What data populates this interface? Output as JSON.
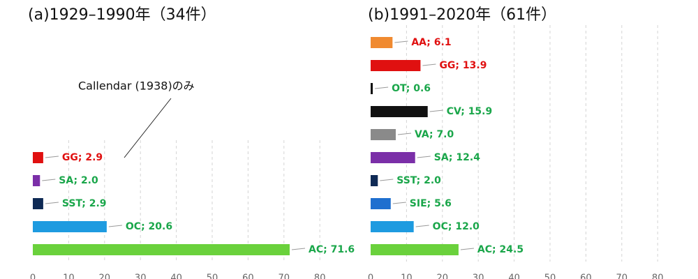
{
  "chart_data": [
    {
      "type": "bar",
      "orientation": "horizontal",
      "title": "(a)1929–1990年（34件）",
      "label_separator": "; ",
      "categories": [
        "GG",
        "SA",
        "SST",
        "OC",
        "AC"
      ],
      "values": [
        2.9,
        2.0,
        2.9,
        20.6,
        71.6
      ],
      "value_labels": [
        "2.9",
        "2.0",
        "2.9",
        "20.6",
        "71.6"
      ],
      "colors": [
        "#e01010",
        "#7b2fa8",
        "#0f2a55",
        "#1e9be0",
        "#6ad13c"
      ],
      "label_colors": [
        "#e01010",
        "#1aa64a",
        "#1aa64a",
        "#1aa64a",
        "#1aa64a"
      ],
      "xlim": [
        0,
        80
      ],
      "xticks": [
        0,
        10,
        20,
        30,
        40,
        50,
        60,
        70,
        80
      ],
      "grid": true,
      "annotation": "Callendar (1938)のみ"
    },
    {
      "type": "bar",
      "orientation": "horizontal",
      "title": "(b)1991–2020年（61件）",
      "label_separator": "; ",
      "categories": [
        "AA",
        "GG",
        "OT",
        "CV",
        "VA",
        "SA",
        "SST",
        "SIE",
        "OC",
        "AC"
      ],
      "values": [
        6.1,
        13.9,
        0.6,
        15.9,
        7.0,
        12.4,
        2.0,
        5.6,
        12.0,
        24.5
      ],
      "value_labels": [
        "6.1",
        "13.9",
        "0.6",
        "15.9",
        "7.0",
        "12.4",
        "2.0",
        "5.6",
        "12.0",
        "24.5"
      ],
      "colors": [
        "#f08a30",
        "#e01010",
        "#111111",
        "#111111",
        "#8a8a8a",
        "#7b2fa8",
        "#0f2a55",
        "#1f6fcf",
        "#1e9be0",
        "#6ad13c"
      ],
      "label_colors": [
        "#e01010",
        "#e01010",
        "#1aa64a",
        "#1aa64a",
        "#1aa64a",
        "#1aa64a",
        "#1aa64a",
        "#1aa64a",
        "#1aa64a",
        "#1aa64a"
      ],
      "xlim": [
        0,
        80
      ],
      "xticks": [
        0,
        10,
        20,
        30,
        40,
        50,
        60,
        70,
        80
      ],
      "grid": true
    }
  ]
}
